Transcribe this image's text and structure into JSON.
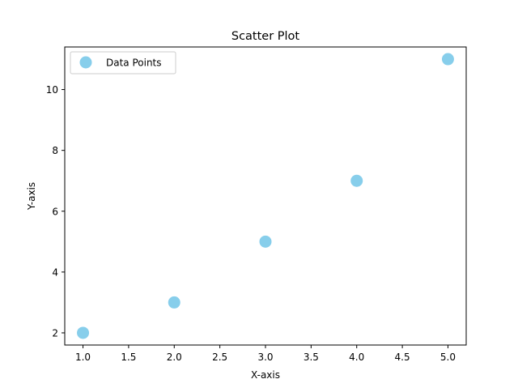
{
  "chart_data": {
    "type": "scatter",
    "title": "Scatter Plot",
    "xlabel": "X-axis",
    "ylabel": "Y-axis",
    "xlim": [
      0.8,
      5.2
    ],
    "ylim": [
      1.6,
      11.4
    ],
    "x_ticks": [
      1.0,
      1.5,
      2.0,
      2.5,
      3.0,
      3.5,
      4.0,
      4.5,
      5.0
    ],
    "x_tick_labels": [
      "1.0",
      "1.5",
      "2.0",
      "2.5",
      "3.0",
      "3.5",
      "4.0",
      "4.5",
      "5.0"
    ],
    "y_ticks": [
      2,
      4,
      6,
      8,
      10
    ],
    "y_tick_labels": [
      "2",
      "4",
      "6",
      "8",
      "10"
    ],
    "grid": false,
    "legend": {
      "position": "top-left",
      "entries": [
        "Data Points"
      ]
    },
    "series": [
      {
        "name": "Data Points",
        "color": "#87ceeb",
        "x": [
          1,
          2,
          3,
          4,
          5
        ],
        "y": [
          2,
          3,
          5,
          7,
          11
        ]
      }
    ]
  }
}
